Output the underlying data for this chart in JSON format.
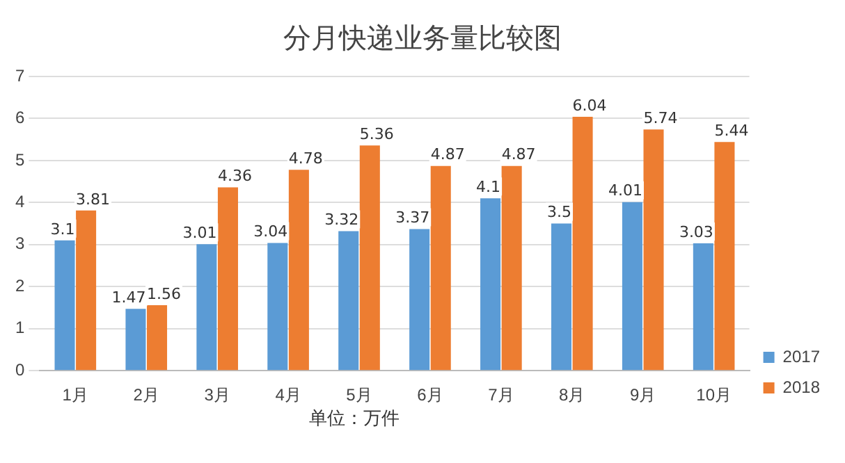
{
  "chart_data": {
    "type": "bar",
    "title": "分月快递业务量比较图",
    "categories": [
      "1月",
      "2月",
      "3月",
      "4月",
      "5月",
      "6月",
      "7月",
      "8月",
      "9月",
      "10月"
    ],
    "series": [
      {
        "name": "2017",
        "color": "#5b9bd5",
        "values": [
          3.1,
          1.47,
          3.01,
          3.04,
          3.32,
          3.37,
          4.1,
          3.5,
          4.01,
          3.03
        ]
      },
      {
        "name": "2018",
        "color": "#ed7d31",
        "values": [
          3.81,
          1.56,
          4.36,
          4.78,
          5.36,
          4.87,
          4.87,
          6.04,
          5.74,
          5.44
        ]
      }
    ],
    "ylim": [
      0,
      7
    ],
    "yticks": [
      0,
      1,
      2,
      3,
      4,
      5,
      6,
      7
    ],
    "grid": "y",
    "legend": "bottom right",
    "data_labels": true,
    "annotations": [
      "单位：万件"
    ]
  }
}
